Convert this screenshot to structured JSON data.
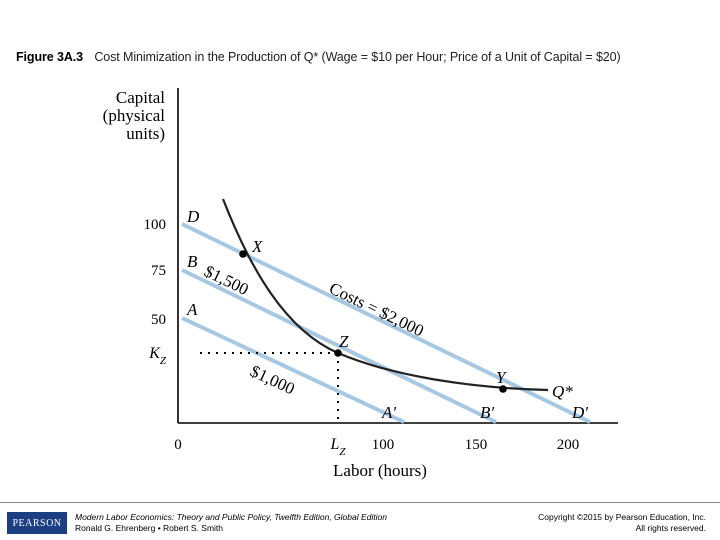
{
  "caption": {
    "figure_label": "Figure 3A.3",
    "text": "Cost Minimization in the Production of Q* (Wage = $10 per Hour; Price of a Unit of Capital = $20)"
  },
  "axes": {
    "y_title_lines": [
      "Capital",
      "(physical",
      "units)"
    ],
    "x_title": "Labor (hours)",
    "y_ticks": [
      "100",
      "75",
      "50",
      "K_Z"
    ],
    "x_ticks": [
      "0",
      "L_Z",
      "100",
      "150",
      "200"
    ]
  },
  "lines": {
    "D": "D",
    "B": "B",
    "A": "A",
    "D_prime": "D′",
    "B_prime": "B′",
    "A_prime": "A′",
    "costs_2000": "Costs = $2,000",
    "costs_1500": "$1,500",
    "costs_1000": "$1,000"
  },
  "points": {
    "X": "X",
    "Z": "Z",
    "Y": "Y"
  },
  "curve_label": "Q*",
  "footer": {
    "logo": "PEARSON",
    "book_title": "Modern Labor Economics: Theory and Public Policy, Twelfth Edition, Global Edition",
    "authors": "Ronald G. Ehrenberg • Robert S. Smith",
    "copyright_line1": "Copyright ©2015 by Pearson Education, Inc.",
    "copyright_line2": "All rights reserved."
  },
  "colors": {
    "iso_cost_lines": "#a7c8e3",
    "isoquant": "#222222",
    "axes": "#000000"
  }
}
